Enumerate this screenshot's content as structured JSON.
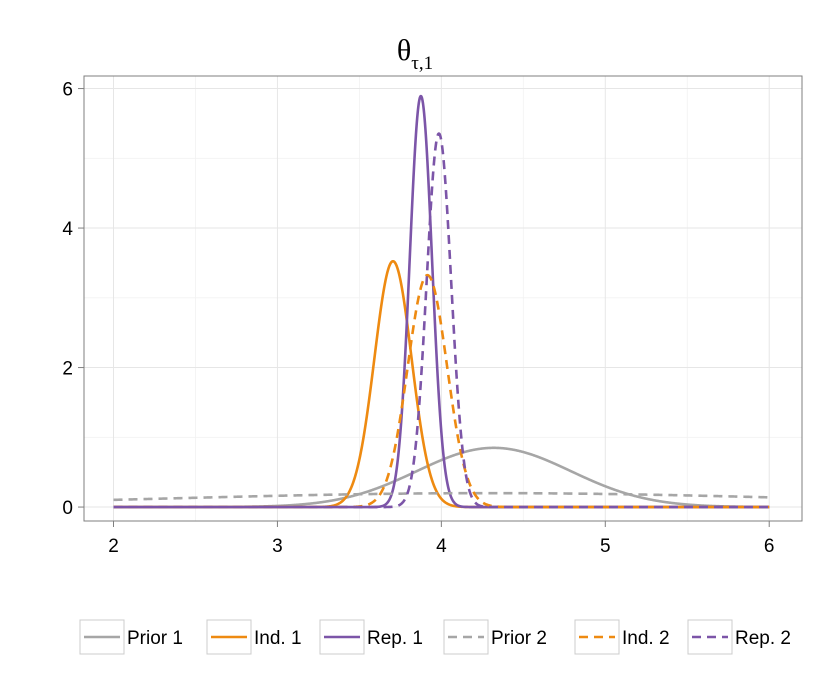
{
  "chart_data": {
    "type": "line",
    "title": "θ",
    "title_subscript": "τ,1",
    "xlabel": "",
    "ylabel": "",
    "xlim": [
      1.82,
      6.2
    ],
    "ylim": [
      -0.2,
      6.18
    ],
    "xticks": [
      2,
      3,
      4,
      5,
      6
    ],
    "yticks": [
      0,
      2,
      4,
      6
    ],
    "x_tick_labels": [
      "2",
      "3",
      "4",
      "5",
      "6"
    ],
    "y_tick_labels": [
      "0",
      "2",
      "4",
      "6"
    ],
    "grid": true,
    "legend_position": "bottom",
    "x_range": [
      2,
      6
    ],
    "series": [
      {
        "name": "Prior 1",
        "color": "#a6a6a6",
        "dash": "solid",
        "components": [
          {
            "w": 1,
            "mu": 4.32,
            "sigma": 0.47
          }
        ]
      },
      {
        "name": "Ind. 1",
        "color": "#ee8a11",
        "dash": "solid",
        "components": [
          {
            "w": 1,
            "mu": 3.705,
            "sigma": 0.1132
          }
        ]
      },
      {
        "name": "Rep. 1",
        "color": "#7c55a8",
        "dash": "solid",
        "components": [
          {
            "w": 1,
            "mu": 3.875,
            "sigma": 0.0677
          }
        ]
      },
      {
        "name": "Prior 2",
        "color": "#a6a6a6",
        "dash": "dashed",
        "components": [
          {
            "w": 1,
            "mu": 4.3,
            "sigma": 2.0
          }
        ]
      },
      {
        "name": "Ind. 2",
        "color": "#ee8a11",
        "dash": "dashed",
        "components": [
          {
            "w": 1,
            "mu": 3.915,
            "sigma": 0.12
          }
        ]
      },
      {
        "name": "Rep. 2",
        "color": "#7c55a8",
        "dash": "dashed",
        "components": [
          {
            "w": 1,
            "mu": 3.985,
            "sigma": 0.0745
          }
        ]
      }
    ]
  }
}
